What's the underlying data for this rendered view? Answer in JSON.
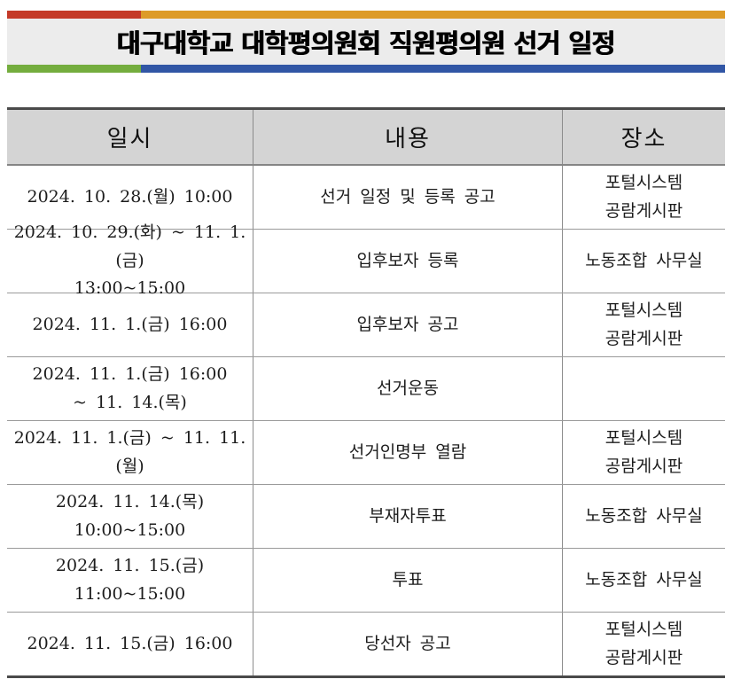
{
  "title": {
    "text": "대구대학교 대학평의원회 직원평의원 선거 일정"
  },
  "accent_colors": {
    "red": "#c43a28",
    "orange": "#dd9b28",
    "green": "#74ad3e",
    "blue": "#3156a5"
  },
  "table": {
    "headers": [
      "일시",
      "내용",
      "장소"
    ],
    "rows": [
      {
        "datetime": "2024.  10.  28.(월)  10:00",
        "content": "선거  일정  및  등록  공고",
        "location": "포털시스템\n공람게시판"
      },
      {
        "datetime": "2024.  10.  29.(화) ~ 11.  1.(금)\n13:00~15:00",
        "content": "입후보자  등록",
        "location": "노동조합  사무실"
      },
      {
        "datetime": "2024.  11.  1.(금)  16:00",
        "content": "입후보자  공고",
        "location": "포털시스템\n공람게시판"
      },
      {
        "datetime": "2024.  11.  1.(금)  16:00\n~  11.  14.(목)",
        "content": "선거운동",
        "location": ""
      },
      {
        "datetime": "2024.  11.  1.(금) ~ 11.  11.(월)",
        "content": "선거인명부  열람",
        "location": "포털시스템\n공람게시판"
      },
      {
        "datetime": "2024.  11.  14.(목)  10:00~15:00",
        "content": "부재자투표",
        "location": "노동조합  사무실"
      },
      {
        "datetime": "2024.  11.  15.(금)  11:00~15:00",
        "content": "투표",
        "location": "노동조합  사무실"
      },
      {
        "datetime": "2024.  11.  15.(금)  16:00",
        "content": "당선자  공고",
        "location": "포털시스템\n공람게시판"
      }
    ]
  }
}
